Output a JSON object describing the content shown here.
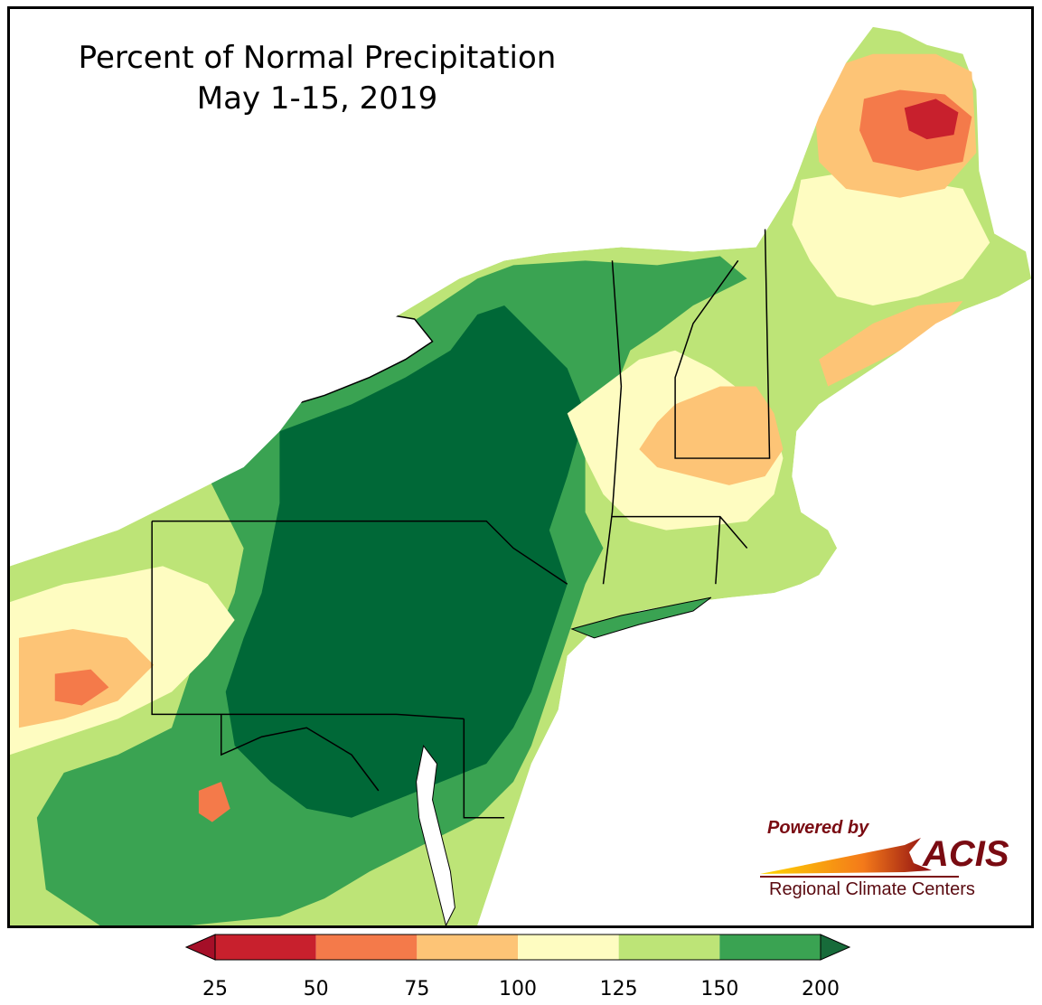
{
  "map": {
    "title": "Percent of Normal Precipitation",
    "subtitle": "May 1-15, 2019"
  },
  "logo": {
    "powered_by": "Powered by",
    "brand": "ACIS",
    "org": "Regional Climate Centers"
  },
  "legend": {
    "bins": [
      {
        "from": 25,
        "to": 50,
        "color": "#c8202d"
      },
      {
        "from": 50,
        "to": 75,
        "color": "#f47a4a"
      },
      {
        "from": 75,
        "to": 100,
        "color": "#fdc476"
      },
      {
        "from": 100,
        "to": 125,
        "color": "#fefcc1"
      },
      {
        "from": 125,
        "to": 150,
        "color": "#bde477"
      },
      {
        "from": 150,
        "to": 200,
        "color": "#3aa352"
      }
    ],
    "below_color": "#a50f28",
    "above_color": "#176b3a",
    "ticks": [
      "25",
      "50",
      "75",
      "100",
      "125",
      "150",
      "200"
    ]
  },
  "colors": {
    "deep_green": "#006837",
    "green": "#3aa352",
    "light_green": "#bde477",
    "pale_yellow": "#fefcc1",
    "light_orange": "#fdc476",
    "orange": "#f47a4a",
    "red": "#c8202d",
    "water": "#ffffff"
  }
}
